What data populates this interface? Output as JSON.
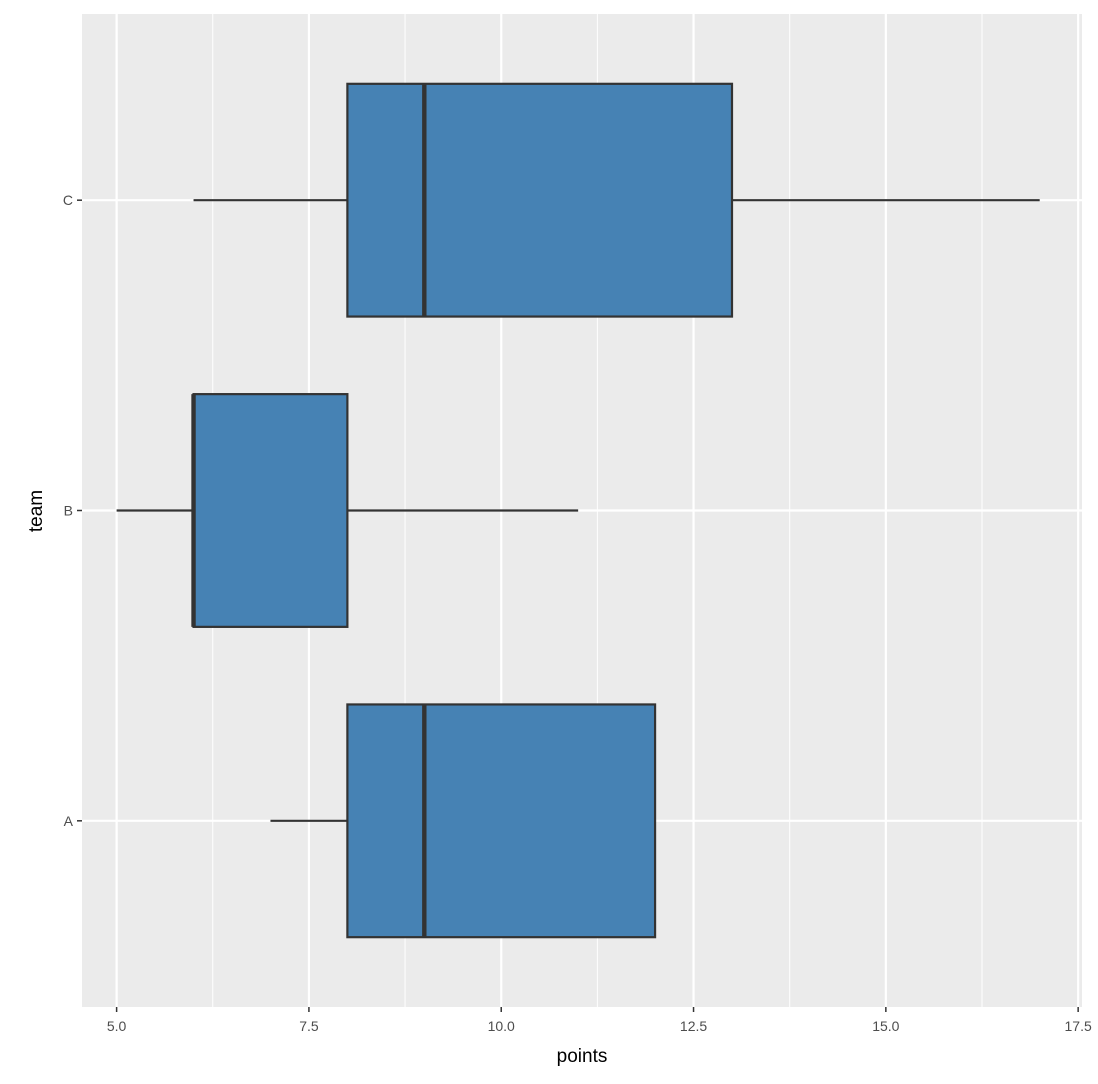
{
  "chart_data": {
    "type": "boxplot",
    "orientation": "horizontal",
    "xlabel": "points",
    "ylabel": "team",
    "xlim": [
      4.55,
      17.55
    ],
    "x_ticks": [
      5.0,
      7.5,
      10.0,
      12.5,
      15.0,
      17.5
    ],
    "x_tick_labels": [
      "5.0",
      "7.5",
      "10.0",
      "12.5",
      "15.0",
      "17.5"
    ],
    "categories": [
      "A",
      "B",
      "C"
    ],
    "boxes": [
      {
        "category": "A",
        "whisker_low": 7,
        "q1": 8,
        "median": 9,
        "q3": 12,
        "whisker_high": 12
      },
      {
        "category": "B",
        "whisker_low": 5,
        "q1": 6,
        "median": 6,
        "q3": 8,
        "whisker_high": 11
      },
      {
        "category": "C",
        "whisker_low": 6,
        "q1": 8,
        "median": 9,
        "q3": 13,
        "whisker_high": 17
      }
    ],
    "fill_color": "#4682b4",
    "outline_color": "#333333",
    "panel_background": "#ebebeb",
    "grid_color": "#ffffff",
    "grid": true,
    "legend": "none"
  }
}
